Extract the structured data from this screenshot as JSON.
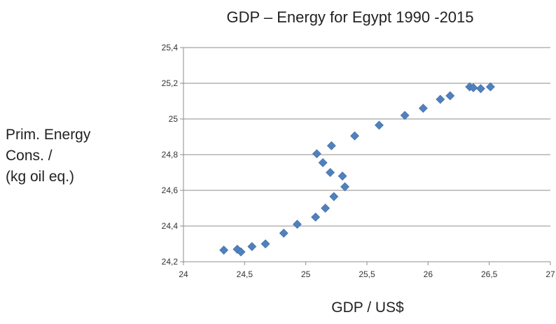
{
  "chart_data": {
    "type": "scatter",
    "title": "GDP – Energy for Egypt 1990 -2015",
    "xlabel": "GDP / US$",
    "ylabel_lines": [
      "Prim. Energy",
      "Cons. /",
      "(kg oil eq.)"
    ],
    "xlim": [
      24,
      27
    ],
    "ylim": [
      24.2,
      25.4
    ],
    "xticks": [
      "24",
      "24,5",
      "25",
      "25,5",
      "26",
      "26,5",
      "27"
    ],
    "yticks": [
      "24,2",
      "24,4",
      "24,6",
      "24,8",
      "25",
      "25,2",
      "25,4"
    ],
    "grid": "horizontal",
    "marker_color": "#4f81bd",
    "marker": "diamond",
    "points": [
      {
        "x": 24.33,
        "y": 24.265
      },
      {
        "x": 24.44,
        "y": 24.27
      },
      {
        "x": 24.47,
        "y": 24.255
      },
      {
        "x": 24.56,
        "y": 24.285
      },
      {
        "x": 24.67,
        "y": 24.3
      },
      {
        "x": 24.82,
        "y": 24.36
      },
      {
        "x": 24.93,
        "y": 24.41
      },
      {
        "x": 25.08,
        "y": 24.45
      },
      {
        "x": 25.16,
        "y": 24.5
      },
      {
        "x": 25.23,
        "y": 24.565
      },
      {
        "x": 25.32,
        "y": 24.62
      },
      {
        "x": 25.3,
        "y": 24.68
      },
      {
        "x": 25.2,
        "y": 24.7
      },
      {
        "x": 25.14,
        "y": 24.755
      },
      {
        "x": 25.09,
        "y": 24.805
      },
      {
        "x": 25.21,
        "y": 24.85
      },
      {
        "x": 25.4,
        "y": 24.905
      },
      {
        "x": 25.6,
        "y": 24.965
      },
      {
        "x": 25.81,
        "y": 25.02
      },
      {
        "x": 25.96,
        "y": 25.06
      },
      {
        "x": 26.1,
        "y": 25.11
      },
      {
        "x": 26.18,
        "y": 25.13
      },
      {
        "x": 26.34,
        "y": 25.18
      },
      {
        "x": 26.37,
        "y": 25.175
      },
      {
        "x": 26.43,
        "y": 25.17
      },
      {
        "x": 26.51,
        "y": 25.18
      }
    ]
  }
}
